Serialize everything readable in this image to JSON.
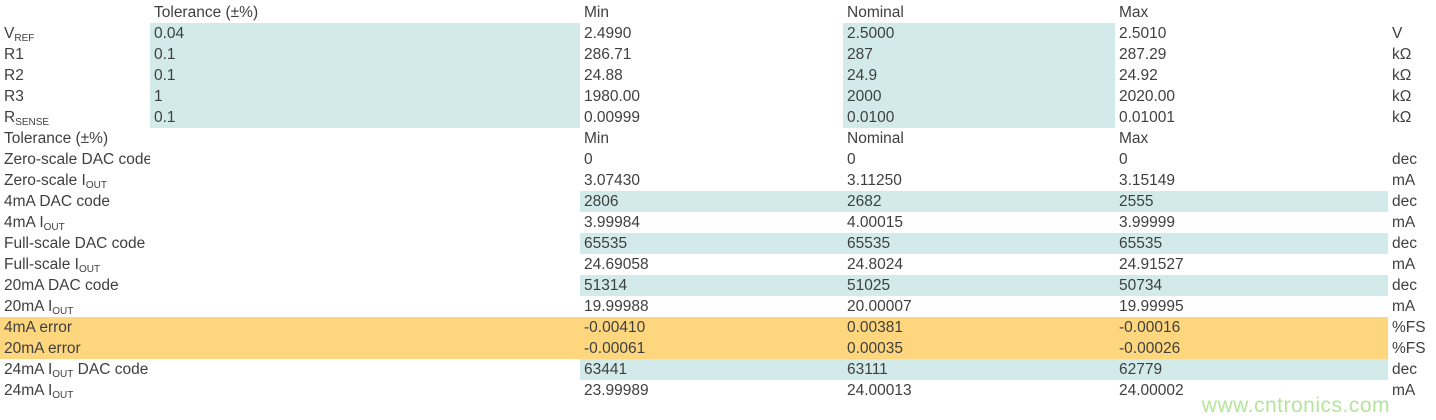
{
  "colors": {
    "text": "#3f3f3f",
    "highlight_blue": "#d3eaea",
    "highlight_orange": "#fdd67e",
    "watermark_green": "#b5e49b"
  },
  "watermark": "www.cntronics.com",
  "sections": [
    {
      "header": {
        "label": "",
        "tolerance": "Tolerance (±%)",
        "min": "Min",
        "nominal": "Nominal",
        "max": "Max",
        "unit": ""
      },
      "rows": [
        {
          "label": {
            "pre": "V",
            "sub": "REF"
          },
          "tolerance": "0.04",
          "min": "2.4990",
          "nominal": "2.5000",
          "max": "2.5010",
          "unit": "V",
          "hl": "cols"
        },
        {
          "label": {
            "pre": "R1"
          },
          "tolerance": "0.1",
          "min": "286.71",
          "nominal": "287",
          "max": "287.29",
          "unit": "kΩ",
          "hl": "cols"
        },
        {
          "label": {
            "pre": "R2"
          },
          "tolerance": "0.1",
          "min": "24.88",
          "nominal": "24.9",
          "max": "24.92",
          "unit": "kΩ",
          "hl": "cols"
        },
        {
          "label": {
            "pre": "R3"
          },
          "tolerance": "1",
          "min": "1980.00",
          "nominal": "2000",
          "max": "2020.00",
          "unit": "kΩ",
          "hl": "cols"
        },
        {
          "label": {
            "pre": "R",
            "sub": "SENSE"
          },
          "tolerance": "0.1",
          "min": "0.00999",
          "nominal": "0.0100",
          "max": "0.01001",
          "unit": "kΩ",
          "hl": "cols"
        }
      ]
    },
    {
      "header": {
        "label": "Tolerance (±%)",
        "tolerance": "",
        "min": "Min",
        "nominal": "Nominal",
        "max": "Max",
        "unit": ""
      },
      "rows": [
        {
          "label": {
            "pre": "Zero-scale DAC code"
          },
          "tolerance": "",
          "min": "0",
          "nominal": "0",
          "max": "0",
          "unit": "dec",
          "hl": "none"
        },
        {
          "label": {
            "pre": "Zero-scale I",
            "sub": "OUT"
          },
          "tolerance": "",
          "min": "3.07430",
          "nominal": "3.11250",
          "max": "3.15149",
          "unit": "mA",
          "hl": "none"
        },
        {
          "label": {
            "pre": "4mA DAC code"
          },
          "tolerance": "",
          "min": "2806",
          "nominal": "2682",
          "max": "2555",
          "unit": "dec",
          "hl": "blue"
        },
        {
          "label": {
            "pre": "4mA I",
            "sub": "OUT"
          },
          "tolerance": "",
          "min": "3.99984",
          "nominal": "4.00015",
          "max": "3.99999",
          "unit": "mA",
          "hl": "none"
        },
        {
          "label": {
            "pre": "Full-scale DAC code"
          },
          "tolerance": "",
          "min": "65535",
          "nominal": "65535",
          "max": "65535",
          "unit": "dec",
          "hl": "blue"
        },
        {
          "label": {
            "pre": "Full-scale I",
            "sub": "OUT"
          },
          "tolerance": "",
          "min": "24.69058",
          "nominal": "24.8024",
          "max": "24.91527",
          "unit": "mA",
          "hl": "none"
        },
        {
          "label": {
            "pre": "20mA DAC code"
          },
          "tolerance": "",
          "min": "51314",
          "nominal": "51025",
          "max": "50734",
          "unit": "dec",
          "hl": "blue"
        },
        {
          "label": {
            "pre": "20mA I",
            "sub": "OUT"
          },
          "tolerance": "",
          "min": "19.99988",
          "nominal": "20.00007",
          "max": "19.99995",
          "unit": "mA",
          "hl": "none"
        },
        {
          "label": {
            "pre": "4mA error"
          },
          "tolerance": "",
          "min": "-0.00410",
          "nominal": "0.00381",
          "max": "-0.00016",
          "unit": "%FS",
          "hl": "orange"
        },
        {
          "label": {
            "pre": "20mA error"
          },
          "tolerance": "",
          "min": "-0.00061",
          "nominal": "0.00035",
          "max": "-0.00026",
          "unit": "%FS",
          "hl": "orange"
        },
        {
          "label": {
            "pre": "24mA I",
            "sub": "OUT",
            "post": " DAC code"
          },
          "tolerance": "",
          "min": "63441",
          "nominal": "63111",
          "max": "62779",
          "unit": "dec",
          "hl": "blue"
        },
        {
          "label": {
            "pre": "24mA I",
            "sub": "OUT"
          },
          "tolerance": "",
          "min": "23.99989",
          "nominal": "24.00013",
          "max": "24.00002",
          "unit": "mA",
          "hl": "none"
        }
      ]
    }
  ]
}
